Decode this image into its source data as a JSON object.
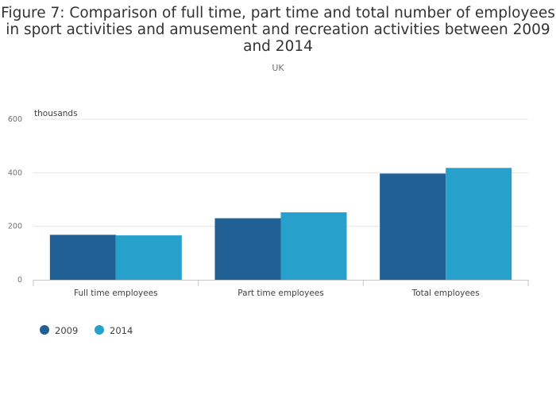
{
  "chart_data": {
    "type": "bar",
    "title_lines": [
      "Figure 7: Comparison of full time, part time and total number of employees",
      "in sport activities and amusement and recreation activities between 2009",
      "and 2014"
    ],
    "subtitle": "UK",
    "ylabel": "thousands",
    "xlabel": "",
    "categories": [
      "Full time employees",
      "Part time employees",
      "Total employees"
    ],
    "series": [
      {
        "name": "2009",
        "color": "#206095",
        "values": [
          168,
          230,
          397
        ]
      },
      {
        "name": "2014",
        "color": "#27a0cc",
        "values": [
          166,
          252,
          418
        ]
      }
    ],
    "ylim": [
      0,
      600
    ],
    "yticks": [
      0,
      200,
      400,
      600
    ],
    "grid": true,
    "legend_position": "bottom-left"
  }
}
